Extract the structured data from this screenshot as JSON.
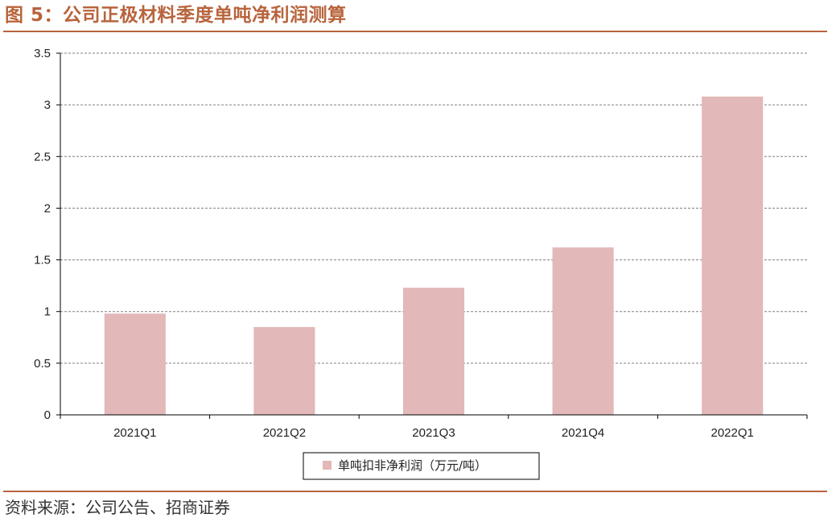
{
  "figure": {
    "title": "图 5：公司正极材料季度单吨净利润测算",
    "source": "资料来源：公司公告、招商证券"
  },
  "colors": {
    "title": "#b8643d",
    "bar": "#e3b8b8",
    "gridline": "#808080",
    "axis": "#000000"
  },
  "chart_data": {
    "type": "bar",
    "title": "",
    "xlabel": "",
    "ylabel": "",
    "categories": [
      "2021Q1",
      "2021Q2",
      "2021Q3",
      "2021Q4",
      "2022Q1"
    ],
    "series": [
      {
        "name": "单吨扣非净利润（万元/吨）",
        "values": [
          0.98,
          0.85,
          1.23,
          1.62,
          3.08
        ]
      }
    ],
    "ylim": [
      0,
      3.5
    ],
    "yticks": [
      0,
      0.5,
      1,
      1.5,
      2,
      2.5,
      3,
      3.5
    ],
    "ytick_labels": [
      "0",
      "0.5",
      "1",
      "1.5",
      "2",
      "2.5",
      "3",
      "3.5"
    ],
    "grid": "horizontal dashed",
    "legend": "bottom-center"
  }
}
